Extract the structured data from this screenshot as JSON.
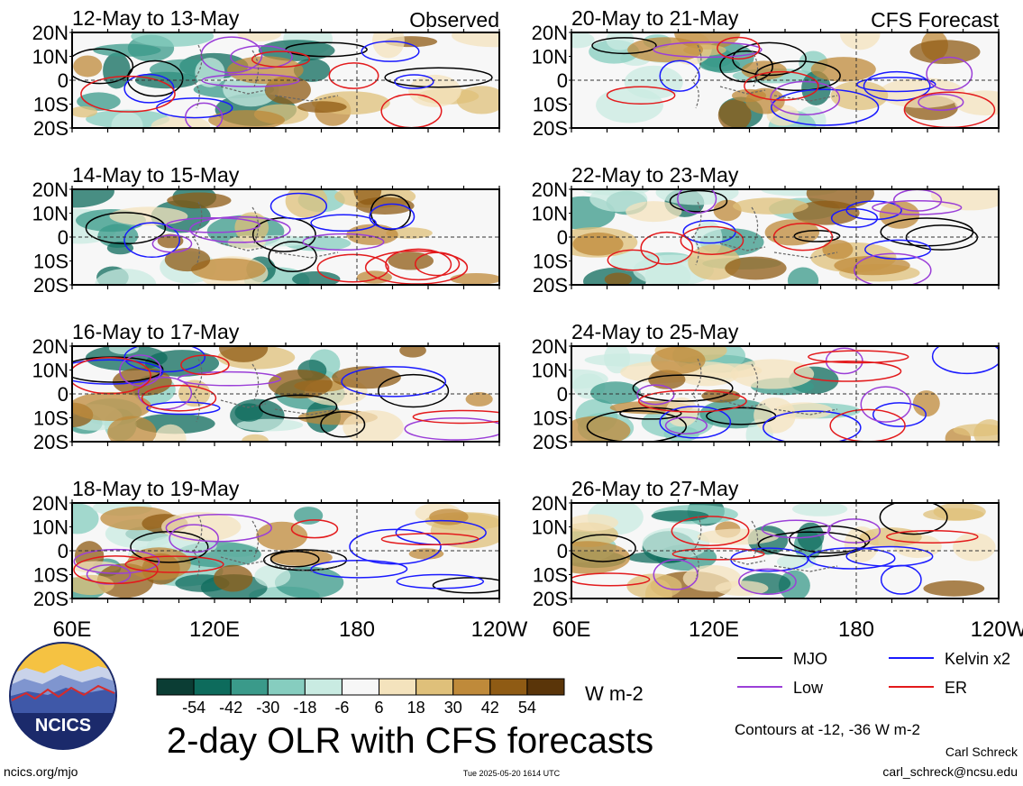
{
  "chart_data": {
    "type": "heatmap",
    "title": "2-day OLR with CFS forecasts",
    "colorbar": {
      "unit": "W m-2",
      "tick_labels": [
        "-54",
        "-42",
        "-30",
        "-18",
        "-6",
        "6",
        "18",
        "30",
        "42",
        "54"
      ],
      "colors": [
        "#0b3d34",
        "#0d6b5c",
        "#3a9a8a",
        "#86cdbf",
        "#c9ebe2",
        "#f7f7f7",
        "#f4e3bd",
        "#dfc07a",
        "#bf8a3a",
        "#8f5b14",
        "#5a3509"
      ]
    },
    "x_axis": {
      "tick_labels": [
        "60E",
        "120E",
        "180",
        "120W"
      ]
    },
    "y_axis": {
      "tick_labels": [
        "20N",
        "10N",
        "0",
        "10S",
        "20S"
      ]
    },
    "panels": [
      {
        "label": "12-May to 13-May",
        "tag": "Observed"
      },
      {
        "label": "14-May to 15-May",
        "tag": ""
      },
      {
        "label": "16-May to 17-May",
        "tag": ""
      },
      {
        "label": "18-May to 19-May",
        "tag": ""
      },
      {
        "label": "20-May to 21-May",
        "tag": "CFS Forecast"
      },
      {
        "label": "22-May to 23-May",
        "tag": ""
      },
      {
        "label": "24-May to 25-May",
        "tag": ""
      },
      {
        "label": "26-May to 27-May",
        "tag": ""
      }
    ],
    "contour_legend": [
      {
        "name": "MJO",
        "color": "#000000"
      },
      {
        "name": "Kelvin x2",
        "color": "#1a1aff"
      },
      {
        "name": "Low",
        "color": "#9b3fd8"
      },
      {
        "name": "ER",
        "color": "#e31a1c"
      }
    ],
    "contour_note": "Contours at -12, -36 W m-2"
  },
  "footer": {
    "logo_text": "NCICS",
    "site": "ncics.org/mjo",
    "timestamp": "Tue 2025-05-20 1614 UTC",
    "author": "Carl Schreck",
    "email": "carl_schreck@ncsu.edu"
  }
}
